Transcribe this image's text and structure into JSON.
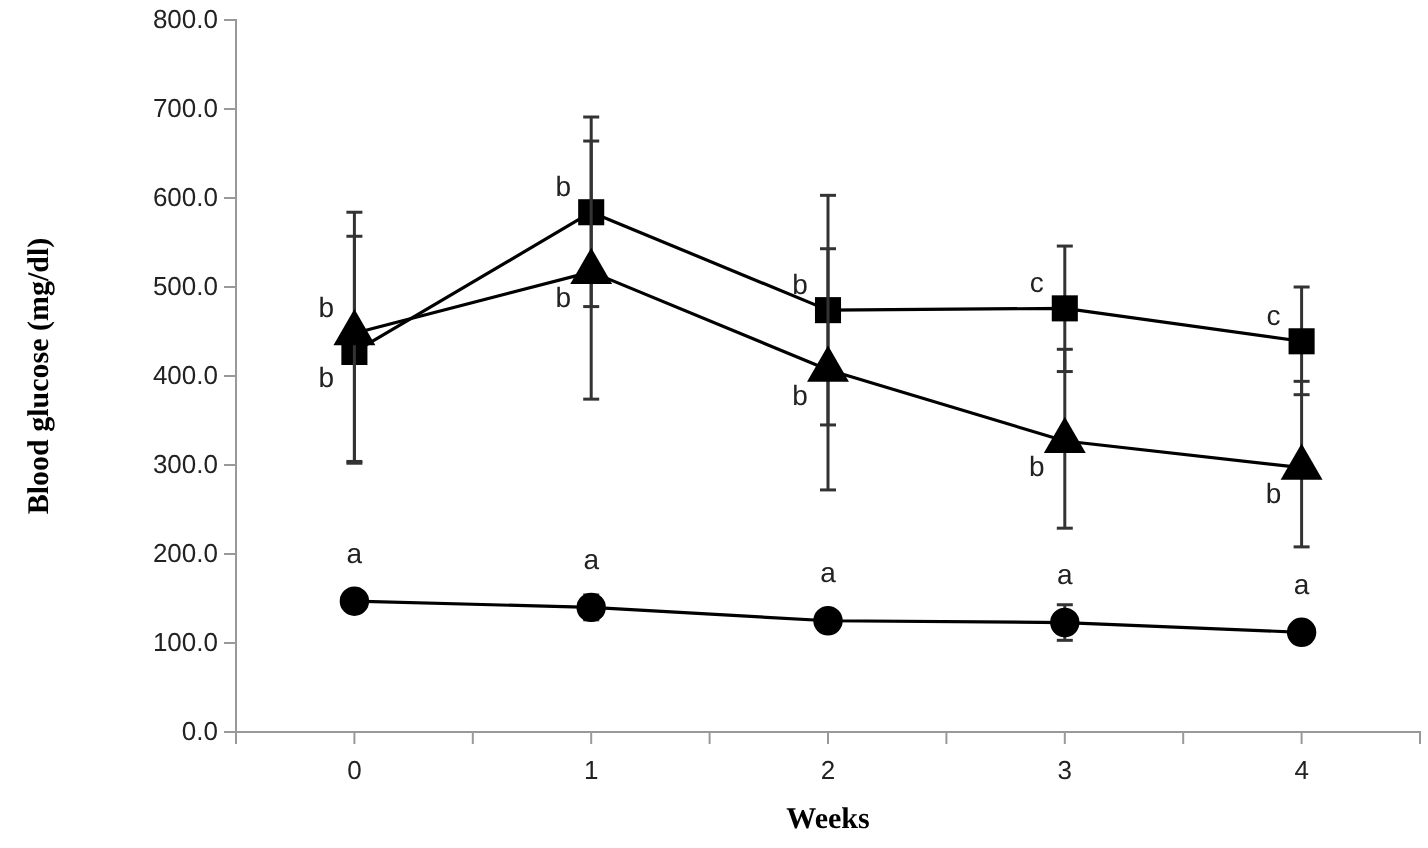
{
  "chart_data": {
    "type": "line",
    "xlabel": "Weeks",
    "ylabel": "Blood glucose (mg/dl)",
    "x": [
      0,
      1,
      2,
      3,
      4
    ],
    "xlim": [
      -0.5,
      4.5
    ],
    "xticks": [
      0,
      1,
      2,
      3,
      4,
      {
        "value": -0.5,
        "label": null
      },
      {
        "value": 0.5,
        "label": null
      },
      {
        "value": 1.5,
        "label": null
      },
      {
        "value": 2.5,
        "label": null
      },
      {
        "value": 3.5,
        "label": null
      },
      {
        "value": 4.5,
        "label": null
      }
    ],
    "ylim": [
      0,
      800
    ],
    "yticks": [
      {
        "value": 0,
        "label": "0.0"
      },
      {
        "value": 100,
        "label": "100.0"
      },
      {
        "value": 200,
        "label": "200.0"
      },
      {
        "value": 300,
        "label": "300.0"
      },
      {
        "value": 400,
        "label": "400.0"
      },
      {
        "value": 500,
        "label": "500.0"
      },
      {
        "value": 600,
        "label": "600.0"
      },
      {
        "value": 700,
        "label": "700.0"
      },
      {
        "value": 800,
        "label": "800.0"
      }
    ],
    "series": [
      {
        "color": "#000000",
        "marker": "circle",
        "values": [
          147,
          140,
          125,
          123,
          112
        ],
        "errors": [
          4,
          14,
          10,
          20,
          10
        ]
      },
      {
        "color": "#000000",
        "marker": "square",
        "values": [
          427,
          584,
          474,
          476,
          439
        ],
        "errors": [
          [
            304,
            584
          ],
          [
            478,
            691
          ],
          [
            345,
            603
          ],
          [
            405,
            546
          ],
          [
            379,
            500
          ]
        ]
      },
      {
        "color": "#000000",
        "marker": "triangle",
        "values": [
          448,
          517,
          407,
          327,
          297
        ],
        "errors": [
          [
            302,
            557
          ],
          [
            374,
            664
          ],
          [
            272,
            543
          ],
          [
            229,
            430
          ],
          [
            208,
            394
          ]
        ]
      }
    ],
    "line_style": "solid",
    "grid": false,
    "annotations": [
      {
        "text": "b",
        "x": 0,
        "y": 448
      },
      {
        "text": "b",
        "x": 0,
        "y": 427
      },
      {
        "text": "b",
        "x": 1,
        "y": 584
      },
      {
        "text": "b",
        "x": 1,
        "y": 517
      },
      {
        "text": "b",
        "x": 2,
        "y": 474
      },
      {
        "text": "b",
        "x": 2,
        "y": 407
      },
      {
        "text": "c",
        "x": 3,
        "y": 476
      },
      {
        "text": "b",
        "x": 3,
        "y": 327
      },
      {
        "text": "c",
        "x": 4,
        "y": 439
      },
      {
        "text": "b",
        "x": 4,
        "y": 297
      },
      {
        "text": "a",
        "x": 0,
        "y": 147
      },
      {
        "text": "a",
        "x": 1,
        "y": 140
      },
      {
        "text": "a",
        "x": 2,
        "y": 125
      },
      {
        "text": "a",
        "x": 3,
        "y": 123
      },
      {
        "text": "a",
        "x": 4,
        "y": 112
      }
    ]
  }
}
